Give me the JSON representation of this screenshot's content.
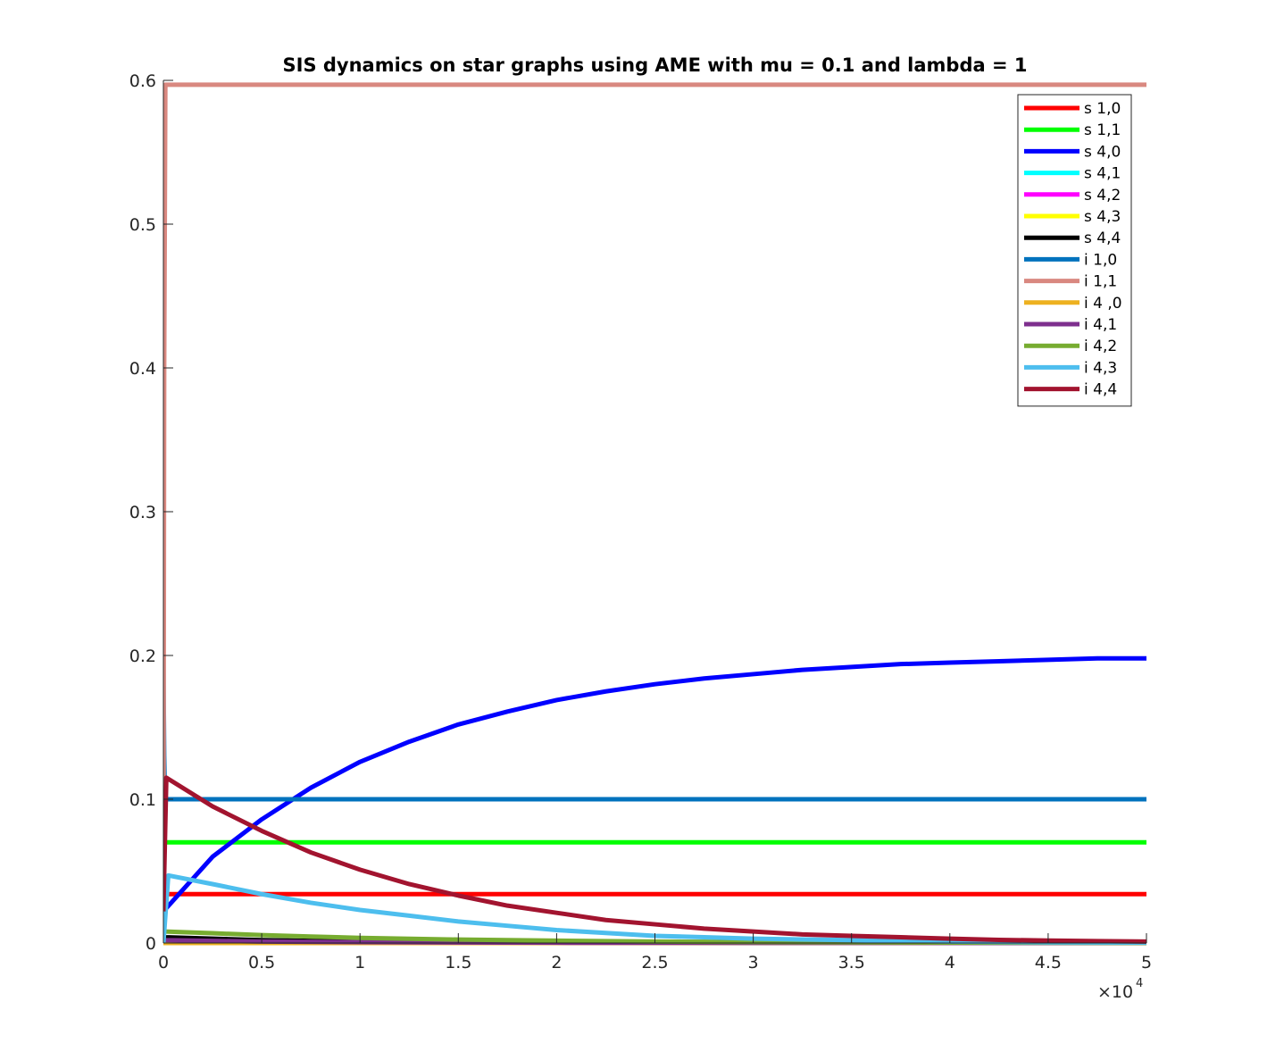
{
  "chart_data": {
    "type": "line",
    "title": "SIS dynamics on star graphs using AME with mu = 0.1 and lambda = 1",
    "xlabel": "",
    "ylabel": "",
    "xlim": [
      0,
      50000
    ],
    "ylim": [
      0,
      0.6
    ],
    "x_ticks": [
      0,
      5000,
      10000,
      15000,
      20000,
      25000,
      30000,
      35000,
      40000,
      45000,
      50000
    ],
    "x_tick_labels": [
      "0",
      "0.5",
      "1",
      "1.5",
      "2",
      "2.5",
      "3",
      "3.5",
      "4",
      "4.5",
      "5"
    ],
    "x_exponent": {
      "times": "×10",
      "power": "4"
    },
    "y_ticks": [
      0,
      0.1,
      0.2,
      0.3,
      0.4,
      0.5,
      0.6
    ],
    "y_tick_labels": [
      "0",
      "0.1",
      "0.2",
      "0.3",
      "0.4",
      "0.5",
      "0.6"
    ],
    "grid": false,
    "legend_position": "top-right",
    "series": [
      {
        "name": "s 1,0",
        "color": "#ff0000",
        "x": [
          0,
          50000
        ],
        "y": [
          0.034,
          0.034
        ]
      },
      {
        "name": "s 1,1",
        "color": "#00ff00",
        "x": [
          0,
          50000
        ],
        "y": [
          0.07,
          0.07
        ]
      },
      {
        "name": "s 4,0",
        "color": "#0000ff",
        "x": [
          0,
          2500,
          5000,
          7500,
          10000,
          12500,
          15000,
          17500,
          20000,
          22500,
          25000,
          27500,
          30000,
          32500,
          35000,
          37500,
          40000,
          42500,
          45000,
          47500,
          50000
        ],
        "y": [
          0.022,
          0.06,
          0.086,
          0.108,
          0.126,
          0.14,
          0.152,
          0.161,
          0.169,
          0.175,
          0.18,
          0.184,
          0.187,
          0.19,
          0.192,
          0.194,
          0.195,
          0.196,
          0.197,
          0.198,
          0.198
        ]
      },
      {
        "name": "s 4,1",
        "color": "#00ffff",
        "x": [
          0,
          50000
        ],
        "y": [
          0.0,
          0.0
        ]
      },
      {
        "name": "s 4,2",
        "color": "#ff00ff",
        "x": [
          0,
          50000
        ],
        "y": [
          0.0,
          0.0
        ]
      },
      {
        "name": "s 4,3",
        "color": "#ffff00",
        "x": [
          0,
          50000
        ],
        "y": [
          0.0,
          0.0
        ]
      },
      {
        "name": "s 4,4",
        "color": "#000000",
        "x": [
          0,
          100,
          5000,
          10000,
          20000,
          30000,
          50000
        ],
        "y": [
          0.005,
          0.004,
          0.002,
          0.001,
          0.0005,
          0.0002,
          0.0
        ]
      },
      {
        "name": "i 1,0",
        "color": "#0072bd",
        "x": [
          0,
          40,
          80,
          50000
        ],
        "y": [
          0.2,
          0.13,
          0.1,
          0.1
        ]
      },
      {
        "name": "i 1,1",
        "color": "#d98880",
        "x": [
          0,
          40,
          100,
          50000
        ],
        "y": [
          0.0,
          0.4,
          0.597,
          0.597
        ]
      },
      {
        "name": "i 4 ,0",
        "color": "#edb120",
        "x": [
          0,
          50000
        ],
        "y": [
          0.0,
          0.0
        ]
      },
      {
        "name": "i 4,1",
        "color": "#7e2f8e",
        "x": [
          0,
          100,
          5000,
          10000,
          20000,
          30000,
          50000
        ],
        "y": [
          0.003,
          0.002,
          0.001,
          0.0006,
          0.0002,
          0.0001,
          0.0
        ]
      },
      {
        "name": "i 4,2",
        "color": "#77ac30",
        "x": [
          0,
          60,
          2500,
          5000,
          7500,
          10000,
          15000,
          20000,
          25000,
          30000,
          40000,
          50000
        ],
        "y": [
          0.015,
          0.008,
          0.0068,
          0.0055,
          0.0045,
          0.0036,
          0.0024,
          0.0016,
          0.001,
          0.0007,
          0.0003,
          0.0001
        ]
      },
      {
        "name": "i 4,3",
        "color": "#4dbeee",
        "x": [
          0,
          250,
          2500,
          5000,
          7500,
          10000,
          12500,
          15000,
          17500,
          20000,
          22500,
          25000,
          27500,
          30000,
          35000,
          40000,
          45000,
          50000
        ],
        "y": [
          0.0,
          0.047,
          0.041,
          0.034,
          0.028,
          0.023,
          0.019,
          0.015,
          0.012,
          0.009,
          0.007,
          0.005,
          0.004,
          0.003,
          0.002,
          0.001,
          0.0005,
          0.0003
        ]
      },
      {
        "name": "i 4,4",
        "color": "#a2142f",
        "x": [
          0,
          150,
          2500,
          5000,
          7500,
          10000,
          12500,
          15000,
          17500,
          20000,
          22500,
          25000,
          27500,
          30000,
          32500,
          35000,
          37500,
          40000,
          42500,
          45000,
          47500,
          50000
        ],
        "y": [
          0.022,
          0.115,
          0.095,
          0.078,
          0.063,
          0.051,
          0.041,
          0.033,
          0.026,
          0.021,
          0.016,
          0.013,
          0.01,
          0.008,
          0.006,
          0.005,
          0.004,
          0.003,
          0.0022,
          0.0017,
          0.0013,
          0.001
        ]
      }
    ]
  }
}
